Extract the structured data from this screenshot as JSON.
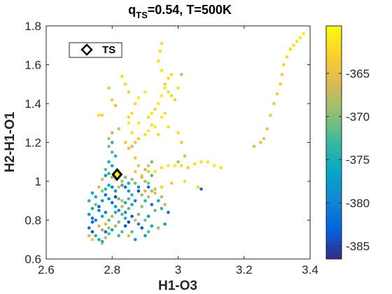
{
  "chart_data": {
    "type": "scatter",
    "title": {
      "q_symbol": "q",
      "q_subscript": "TS",
      "rest": "=0.54, T=500K"
    },
    "xlabel": "H1-O3",
    "ylabel": "H2-H1-O1",
    "xlim": [
      2.6,
      3.4
    ],
    "ylim": [
      0.6,
      1.8
    ],
    "xticks": [
      "2.6",
      "2.8",
      "3",
      "3.2",
      "3.4"
    ],
    "yticks": [
      "0.6",
      "0.8",
      "1",
      "1.2",
      "1.4",
      "1.6",
      "1.8"
    ],
    "colorbar": {
      "colormap": "parula",
      "clim": [
        -386.5,
        -359.5
      ],
      "ticks": [
        "-365",
        "-370",
        "-375",
        "-380",
        "-385"
      ]
    },
    "legend": {
      "label": "TS",
      "location": "top-left"
    },
    "ts_point": {
      "x": 2.815,
      "y": 1.035
    },
    "series": [
      {
        "marker": "filled circle",
        "points": [
          [
            3.38,
            1.76,
            -361
          ],
          [
            3.37,
            1.74,
            -361
          ],
          [
            3.36,
            1.72,
            -361.5
          ],
          [
            3.35,
            1.7,
            -361.5
          ],
          [
            3.34,
            1.68,
            -362
          ],
          [
            3.33,
            1.64,
            -362
          ],
          [
            3.32,
            1.6,
            -362.5
          ],
          [
            3.315,
            1.55,
            -363
          ],
          [
            3.31,
            1.5,
            -363
          ],
          [
            3.3,
            1.45,
            -363.5
          ],
          [
            3.29,
            1.4,
            -364
          ],
          [
            3.28,
            1.34,
            -364.5
          ],
          [
            3.27,
            1.27,
            -365
          ],
          [
            3.26,
            1.22,
            -365
          ],
          [
            3.25,
            1.2,
            -365.5
          ],
          [
            3.23,
            1.18,
            -366
          ],
          [
            3.13,
            1.07,
            -362
          ],
          [
            3.11,
            1.08,
            -361
          ],
          [
            3.09,
            1.1,
            -361
          ],
          [
            3.07,
            1.1,
            -362
          ],
          [
            3.05,
            1.09,
            -362
          ],
          [
            3.03,
            1.07,
            -363
          ],
          [
            3.01,
            1.08,
            -362
          ],
          [
            2.99,
            1.08,
            -361
          ],
          [
            2.97,
            1.08,
            -361
          ],
          [
            2.95,
            1.07,
            -362
          ],
          [
            2.93,
            1.05,
            -362
          ],
          [
            2.91,
            1.05,
            -364
          ],
          [
            2.89,
            1.03,
            -363
          ],
          [
            2.87,
            1.05,
            -364
          ],
          [
            2.94,
            1.24,
            -362
          ],
          [
            2.93,
            1.28,
            -361
          ],
          [
            2.92,
            1.29,
            -362
          ],
          [
            2.91,
            1.26,
            -361
          ],
          [
            2.9,
            1.24,
            -362
          ],
          [
            2.88,
            1.22,
            -364
          ],
          [
            2.87,
            1.2,
            -364
          ],
          [
            2.86,
            1.18,
            -366
          ],
          [
            2.85,
            1.17,
            -365
          ],
          [
            2.84,
            1.2,
            -364
          ],
          [
            2.86,
            1.25,
            -362
          ],
          [
            2.88,
            1.3,
            -361
          ],
          [
            2.85,
            1.33,
            -362
          ],
          [
            2.96,
            1.35,
            -362
          ],
          [
            2.95,
            1.33,
            -361
          ],
          [
            2.97,
            1.28,
            -362
          ],
          [
            3.0,
            1.25,
            -362
          ],
          [
            3.01,
            1.2,
            -364
          ],
          [
            3.02,
            1.13,
            -366
          ],
          [
            3.0,
            1.1,
            -368
          ],
          [
            2.99,
            1.42,
            -363
          ],
          [
            2.98,
            1.44,
            -362
          ],
          [
            2.97,
            1.46,
            -362
          ],
          [
            2.96,
            1.48,
            -361
          ],
          [
            2.95,
            1.44,
            -361
          ],
          [
            2.94,
            1.4,
            -361
          ],
          [
            2.93,
            1.37,
            -362
          ],
          [
            2.92,
            1.35,
            -361
          ],
          [
            2.91,
            1.33,
            -362
          ],
          [
            2.9,
            1.46,
            -361
          ],
          [
            2.88,
            1.43,
            -361
          ],
          [
            2.87,
            1.4,
            -362
          ],
          [
            2.86,
            1.35,
            -362
          ],
          [
            2.85,
            1.3,
            -361
          ],
          [
            2.95,
            1.57,
            -361
          ],
          [
            2.96,
            1.5,
            -363
          ],
          [
            2.97,
            1.53,
            -362
          ],
          [
            2.98,
            1.55,
            -362
          ],
          [
            3.0,
            1.48,
            -362
          ],
          [
            3.01,
            1.55,
            -367
          ],
          [
            2.94,
            1.62,
            -362
          ],
          [
            2.945,
            1.67,
            -362
          ],
          [
            2.95,
            1.71,
            -362
          ],
          [
            2.83,
            1.54,
            -362
          ],
          [
            2.84,
            1.5,
            -362
          ],
          [
            2.85,
            1.46,
            -363
          ],
          [
            2.79,
            1.48,
            -364
          ],
          [
            2.8,
            1.42,
            -364
          ],
          [
            2.81,
            1.39,
            -365
          ],
          [
            2.77,
            1.34,
            -362
          ],
          [
            2.76,
            1.34,
            -362
          ],
          [
            2.82,
            1.27,
            -366
          ],
          [
            2.8,
            1.25,
            -368
          ],
          [
            2.79,
            1.22,
            -368
          ],
          [
            2.8,
            1.2,
            -374
          ],
          [
            2.79,
            1.18,
            -370
          ],
          [
            2.8,
            1.15,
            -372
          ],
          [
            2.81,
            1.13,
            -374
          ],
          [
            2.79,
            1.1,
            -375
          ],
          [
            2.8,
            1.08,
            -377
          ],
          [
            2.78,
            1.06,
            -372
          ],
          [
            2.92,
            1.1,
            -371
          ],
          [
            2.91,
            1.08,
            -365
          ],
          [
            2.9,
            1.06,
            -368
          ],
          [
            2.92,
            1.03,
            -372
          ],
          [
            2.88,
            1.08,
            -364
          ],
          [
            2.87,
            1.12,
            -364
          ],
          [
            2.89,
            1.02,
            -366
          ],
          [
            2.9,
            1.0,
            -368
          ],
          [
            2.91,
            0.99,
            -370
          ],
          [
            2.93,
            0.96,
            -365
          ],
          [
            2.95,
            0.97,
            -363
          ],
          [
            2.98,
            0.99,
            -364
          ],
          [
            3.02,
            1.0,
            -362
          ],
          [
            3.06,
            0.97,
            -362
          ],
          [
            3.07,
            0.96,
            -382
          ],
          [
            2.75,
            0.88,
            -371
          ],
          [
            2.74,
            0.86,
            -376
          ],
          [
            2.76,
            0.85,
            -380
          ],
          [
            2.73,
            0.83,
            -378
          ],
          [
            2.74,
            0.81,
            -382
          ],
          [
            2.75,
            0.8,
            -380
          ],
          [
            2.77,
            0.82,
            -376
          ],
          [
            2.78,
            0.84,
            -381
          ],
          [
            2.76,
            0.87,
            -383
          ],
          [
            2.77,
            0.9,
            -378
          ],
          [
            2.75,
            0.92,
            -375
          ],
          [
            2.74,
            0.94,
            -376
          ],
          [
            2.73,
            0.9,
            -374
          ],
          [
            2.74,
            0.79,
            -383
          ],
          [
            2.73,
            0.76,
            -381
          ],
          [
            2.74,
            0.74,
            -384
          ],
          [
            2.75,
            0.72,
            -374
          ],
          [
            2.76,
            0.7,
            -376
          ],
          [
            2.77,
            0.68,
            -365
          ],
          [
            2.73,
            0.72,
            -366
          ],
          [
            2.74,
            0.7,
            -364
          ],
          [
            2.79,
            0.98,
            -376
          ],
          [
            2.8,
            0.97,
            -380
          ],
          [
            2.81,
            0.95,
            -378
          ],
          [
            2.78,
            0.93,
            -382
          ],
          [
            2.79,
            0.91,
            -379
          ],
          [
            2.8,
            0.89,
            -383
          ],
          [
            2.81,
            0.87,
            -377
          ],
          [
            2.82,
            0.85,
            -380
          ],
          [
            2.83,
            0.83,
            -372
          ],
          [
            2.84,
            0.81,
            -374
          ],
          [
            2.82,
            0.79,
            -371
          ],
          [
            2.81,
            0.77,
            -369
          ],
          [
            2.8,
            0.75,
            -376
          ],
          [
            2.79,
            0.73,
            -372
          ],
          [
            2.78,
            0.71,
            -368
          ],
          [
            2.77,
            0.69,
            -375
          ],
          [
            2.84,
            0.97,
            -382
          ],
          [
            2.85,
            0.95,
            -378
          ],
          [
            2.86,
            0.93,
            -374
          ],
          [
            2.87,
            0.9,
            -380
          ],
          [
            2.86,
            0.88,
            -376
          ],
          [
            2.85,
            0.86,
            -372
          ],
          [
            2.84,
            0.84,
            -379
          ],
          [
            2.86,
            0.82,
            -384
          ],
          [
            2.87,
            0.8,
            -366
          ],
          [
            2.88,
            0.78,
            -380
          ],
          [
            2.89,
            0.76,
            -384
          ],
          [
            2.86,
            0.74,
            -372
          ],
          [
            2.85,
            0.72,
            -365
          ],
          [
            2.87,
            0.7,
            -377
          ],
          [
            2.88,
            0.83,
            -371
          ],
          [
            2.89,
            0.87,
            -369
          ],
          [
            2.91,
            0.92,
            -368
          ],
          [
            2.9,
            0.9,
            -374
          ],
          [
            2.92,
            0.88,
            -382
          ],
          [
            2.93,
            0.85,
            -371
          ],
          [
            2.91,
            0.82,
            -379
          ],
          [
            2.9,
            0.8,
            -371
          ],
          [
            2.92,
            0.77,
            -376
          ],
          [
            2.91,
            0.74,
            -372
          ],
          [
            2.9,
            0.72,
            -378
          ],
          [
            2.93,
            0.94,
            -366
          ],
          [
            2.95,
            0.86,
            -374
          ],
          [
            2.96,
            0.78,
            -377
          ],
          [
            2.94,
            0.76,
            -369
          ],
          [
            2.97,
            0.84,
            -382
          ],
          [
            2.78,
            1.03,
            -378
          ],
          [
            2.77,
            1.01,
            -366
          ],
          [
            2.79,
            1.04,
            -374
          ],
          [
            2.8,
            1.02,
            -370
          ],
          [
            2.81,
            1.01,
            -366
          ],
          [
            2.83,
            1.0,
            -368
          ],
          [
            2.84,
            1.02,
            -370
          ],
          [
            2.85,
            0.99,
            -376
          ],
          [
            2.83,
            0.98,
            -374
          ],
          [
            2.82,
            0.97,
            -366
          ],
          [
            2.86,
            1.01,
            -368
          ],
          [
            2.87,
            0.99,
            -371
          ],
          [
            2.88,
            0.97,
            -379
          ],
          [
            2.76,
            0.97,
            -366
          ],
          [
            2.77,
            0.95,
            -370
          ],
          [
            2.78,
            0.96,
            -374
          ],
          [
            2.81,
            0.92,
            -385
          ],
          [
            2.82,
            0.91,
            -371
          ],
          [
            2.83,
            0.9,
            -368
          ],
          [
            2.84,
            0.89,
            -376
          ],
          [
            2.85,
            0.91,
            -372
          ],
          [
            2.83,
            0.87,
            -367
          ],
          [
            2.81,
            0.84,
            -375
          ],
          [
            2.8,
            0.82,
            -368
          ],
          [
            2.79,
            0.8,
            -372
          ],
          [
            2.78,
            0.78,
            -366
          ],
          [
            2.76,
            0.77,
            -367
          ],
          [
            2.77,
            0.75,
            -370
          ],
          [
            2.78,
            0.74,
            -382
          ],
          [
            2.79,
            0.76,
            -369
          ],
          [
            2.84,
            0.77,
            -384
          ],
          [
            2.85,
            0.79,
            -385
          ],
          [
            2.83,
            0.74,
            -372
          ],
          [
            2.82,
            0.72,
            -373
          ],
          [
            2.88,
            0.95,
            -384
          ],
          [
            2.89,
            0.93,
            -369
          ],
          [
            2.9,
            0.95,
            -366
          ],
          [
            2.91,
            0.97,
            -382
          ],
          [
            2.92,
            0.95,
            -369
          ],
          [
            2.94,
            0.9,
            -376
          ],
          [
            2.95,
            0.92,
            -368
          ],
          [
            2.96,
            0.88,
            -367
          ]
        ]
      }
    ]
  }
}
